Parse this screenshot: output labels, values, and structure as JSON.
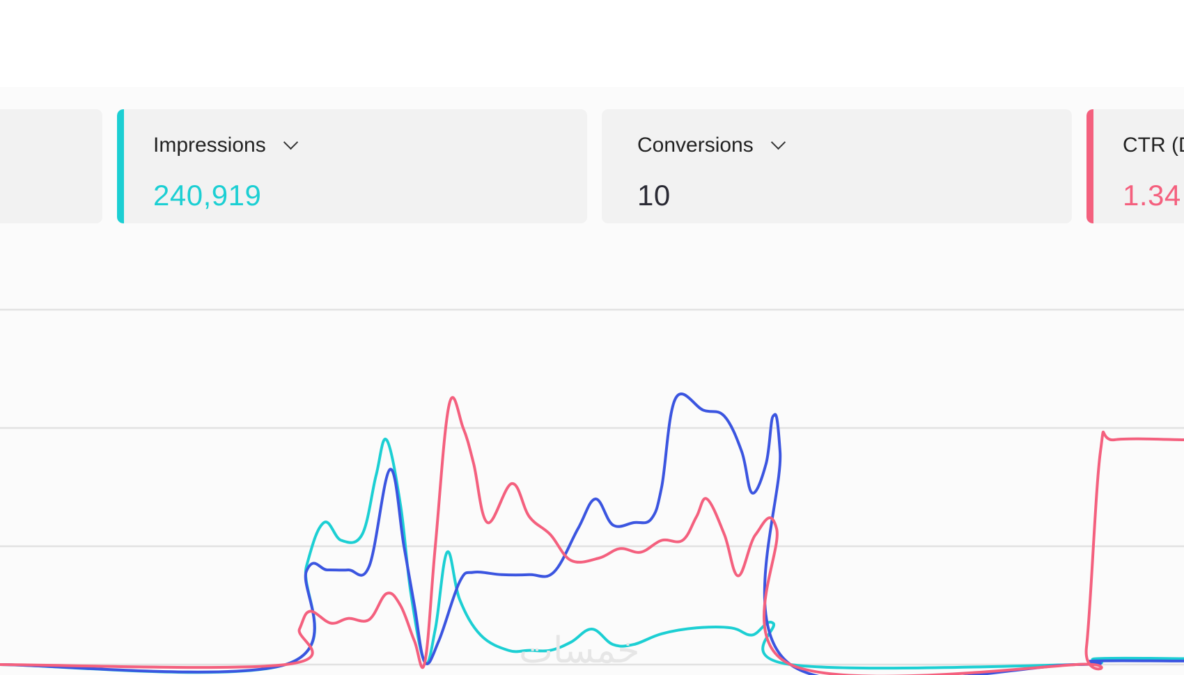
{
  "cards": [
    {
      "label": "",
      "value": "",
      "accent": ""
    },
    {
      "label": "Impressions",
      "value": "240,919",
      "accent": "#1ccfd3"
    },
    {
      "label": "Conversions",
      "value": "10",
      "accent": ""
    },
    {
      "label": "CTR (D",
      "value": "1.34",
      "accent": "#f4607e"
    }
  ],
  "colors": {
    "impressions": "#1ccfd3",
    "conversions": "#3b55e0",
    "ctr": "#f4607e",
    "value_dark": "#2b2b35",
    "grid": "#e2e2e2"
  },
  "watermark": "خمسات",
  "chart_data": {
    "type": "line",
    "grid": true,
    "legend": "none",
    "series": [
      {
        "key": "impressions",
        "points": [
          [
            0,
            0
          ],
          [
            410,
            0
          ],
          [
            440,
            0.83
          ],
          [
            465,
            1.2
          ],
          [
            490,
            1.05
          ],
          [
            520,
            1.1
          ],
          [
            540,
            1.6
          ],
          [
            555,
            1.9
          ],
          [
            575,
            1.35
          ],
          [
            590,
            0.6
          ],
          [
            610,
            0.02
          ],
          [
            625,
            0.3
          ],
          [
            642,
            0.95
          ],
          [
            660,
            0.55
          ],
          [
            690,
            0.25
          ],
          [
            730,
            0.12
          ],
          [
            760,
            0.12
          ],
          [
            790,
            0.12
          ],
          [
            820,
            0.19
          ],
          [
            850,
            0.3
          ],
          [
            880,
            0.17
          ],
          [
            910,
            0.17
          ],
          [
            950,
            0.26
          ],
          [
            1000,
            0.31
          ],
          [
            1050,
            0.31
          ],
          [
            1080,
            0.25
          ],
          [
            1110,
            0.35
          ],
          [
            1135,
            0
          ],
          [
            1545,
            0
          ],
          [
            1575,
            0.05
          ],
          [
            1700,
            0.05
          ]
        ]
      },
      {
        "key": "conversions",
        "points": [
          [
            0,
            0
          ],
          [
            410,
            0
          ],
          [
            440,
            0.79
          ],
          [
            470,
            0.8
          ],
          [
            500,
            0.8
          ],
          [
            530,
            0.83
          ],
          [
            560,
            1.65
          ],
          [
            580,
            1.0
          ],
          [
            595,
            0.5
          ],
          [
            610,
            0.02
          ],
          [
            630,
            0.2
          ],
          [
            660,
            0.7
          ],
          [
            680,
            0.78
          ],
          [
            720,
            0.76
          ],
          [
            760,
            0.76
          ],
          [
            795,
            0.78
          ],
          [
            830,
            1.15
          ],
          [
            855,
            1.4
          ],
          [
            880,
            1.18
          ],
          [
            910,
            1.2
          ],
          [
            935,
            1.23
          ],
          [
            950,
            1.5
          ],
          [
            970,
            2.25
          ],
          [
            1010,
            2.15
          ],
          [
            1040,
            2.1
          ],
          [
            1065,
            1.8
          ],
          [
            1080,
            1.45
          ],
          [
            1100,
            1.7
          ],
          [
            1110,
            2.1
          ],
          [
            1120,
            1.8
          ],
          [
            1135,
            0
          ],
          [
            1545,
            0
          ],
          [
            1570,
            0.03
          ],
          [
            1700,
            0.03
          ]
        ]
      },
      {
        "key": "ctr",
        "points": [
          [
            0,
            0
          ],
          [
            410,
            0
          ],
          [
            430,
            0.3
          ],
          [
            445,
            0.45
          ],
          [
            475,
            0.35
          ],
          [
            500,
            0.39
          ],
          [
            530,
            0.38
          ],
          [
            555,
            0.6
          ],
          [
            575,
            0.5
          ],
          [
            595,
            0.2
          ],
          [
            610,
            0.02
          ],
          [
            625,
            1.0
          ],
          [
            645,
            2.2
          ],
          [
            665,
            2.0
          ],
          [
            680,
            1.7
          ],
          [
            700,
            1.2
          ],
          [
            735,
            1.53
          ],
          [
            760,
            1.25
          ],
          [
            790,
            1.1
          ],
          [
            820,
            0.88
          ],
          [
            860,
            0.9
          ],
          [
            890,
            0.98
          ],
          [
            920,
            0.95
          ],
          [
            950,
            1.05
          ],
          [
            980,
            1.05
          ],
          [
            1000,
            1.25
          ],
          [
            1015,
            1.4
          ],
          [
            1040,
            1.1
          ],
          [
            1060,
            0.75
          ],
          [
            1085,
            1.1
          ],
          [
            1115,
            1.15
          ],
          [
            1135,
            0
          ],
          [
            1545,
            0
          ],
          [
            1560,
            0.15
          ],
          [
            1580,
            1.8
          ],
          [
            1600,
            1.9
          ],
          [
            1700,
            1.9
          ]
        ]
      }
    ]
  }
}
